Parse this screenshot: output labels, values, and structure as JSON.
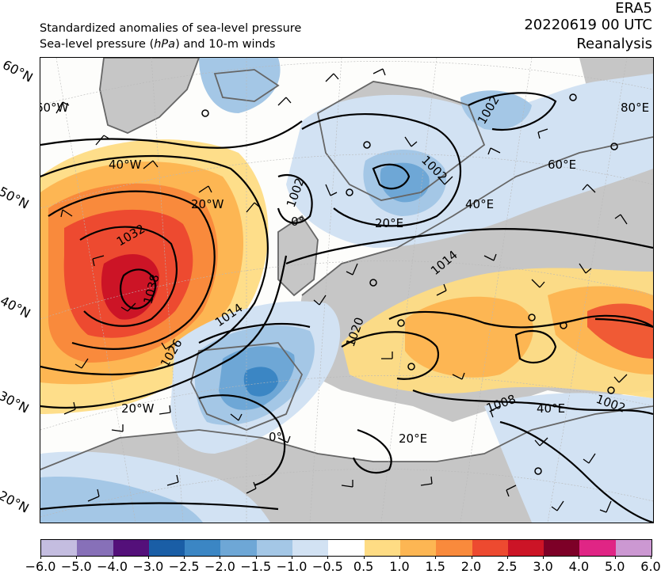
{
  "header": {
    "line1": "Standardized anomalies of sea-level pressure",
    "line2_pre": "Sea-level pressure (",
    "line2_unit": "hPa",
    "line2_post": ") and 10-m winds",
    "dataset": "ERA5",
    "datetime": "20220619 00 UTC",
    "product": "Reanalysis"
  },
  "lat_labels": [
    "60°N",
    "50°N",
    "40°N",
    "30°N",
    "20°N"
  ],
  "lon_labels": [
    "60°W",
    "40°W",
    "20°W",
    "0°",
    "20°E",
    "40°E",
    "60°E",
    "80°E",
    "20°W",
    "0°",
    "20°E",
    "40°E"
  ],
  "isobar_labels": [
    "1032",
    "1038",
    "1026",
    "1020",
    "1014",
    "1008",
    "1002",
    "1002",
    "1002",
    "1008",
    "1014",
    "1020",
    "1002"
  ],
  "colorbar": {
    "ticks": [
      "−6.0",
      "−5.0",
      "−4.0",
      "−3.0",
      "−2.5",
      "−2.0",
      "−1.5",
      "−1.0",
      "−0.5",
      "0.5",
      "1.0",
      "1.5",
      "2.0",
      "2.5",
      "3.0",
      "4.0",
      "5.0",
      "6.0"
    ],
    "colors": [
      "#c4bde0",
      "#8770b8",
      "#54107a",
      "#1a5ea6",
      "#3b86c4",
      "#6ea7d6",
      "#a4c7e6",
      "#d2e2f3",
      "#ffffff",
      "#fedc84",
      "#fdb653",
      "#f98a3c",
      "#ed4a30",
      "#cc1426",
      "#7d0027",
      "#e02585",
      "#cc98d2"
    ]
  },
  "colors": {
    "land": "#c6c6c6",
    "coast": "#666666",
    "isobar": "#000000"
  }
}
